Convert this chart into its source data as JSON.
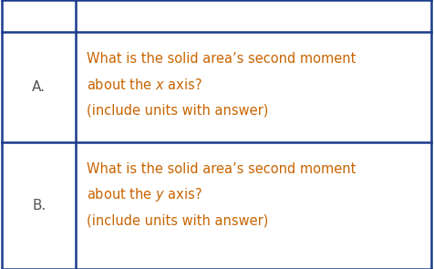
{
  "background_color": "#ffffff",
  "border_color": "#1a3a8c",
  "text_color": "#c86400",
  "label_color": "#555555",
  "font_size": 10.5,
  "label_font_size": 11,
  "col_div": 0.175,
  "row_divs": [
    0.88,
    0.47
  ],
  "row0_label": "A.",
  "row1_label": "B.",
  "row0_line1": "What is the solid area’s second moment",
  "row0_line2_pre": "about the ",
  "row0_line2_italic": "x",
  "row0_line2_post": " axis?",
  "row0_line3": "(include units with answer)",
  "row1_line1": "What is the solid area’s second moment",
  "row1_line2_pre": "about the ",
  "row1_line2_italic": "y",
  "row1_line2_post": " axis?",
  "row1_line3": "(include units with answer)"
}
